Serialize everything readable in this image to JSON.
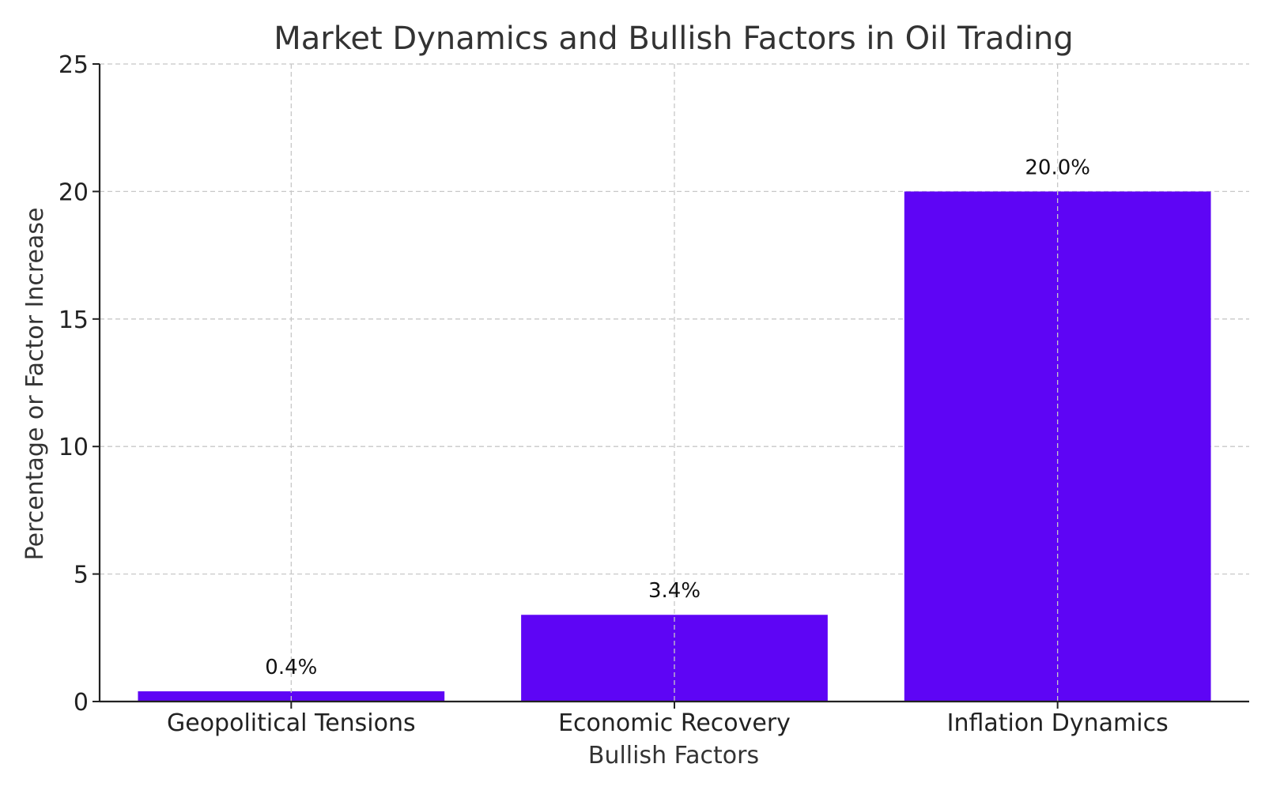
{
  "chart_data": {
    "type": "bar",
    "title": "Market Dynamics and Bullish Factors in Oil Trading",
    "xlabel": "Bullish Factors",
    "ylabel": "Percentage or Factor Increase",
    "categories": [
      "Geopolitical Tensions",
      "Economic Recovery",
      "Inflation Dynamics"
    ],
    "values": [
      0.4,
      3.4,
      20.0
    ],
    "data_labels": [
      "0.4%",
      "3.4%",
      "20.0%"
    ],
    "ylim": [
      0,
      25
    ],
    "yticks": [
      0,
      5,
      10,
      15,
      20,
      25
    ],
    "grid": true,
    "colors": {
      "bar": "#5E05F5",
      "grid": "#c8c8c8",
      "axis": "#222222"
    }
  }
}
